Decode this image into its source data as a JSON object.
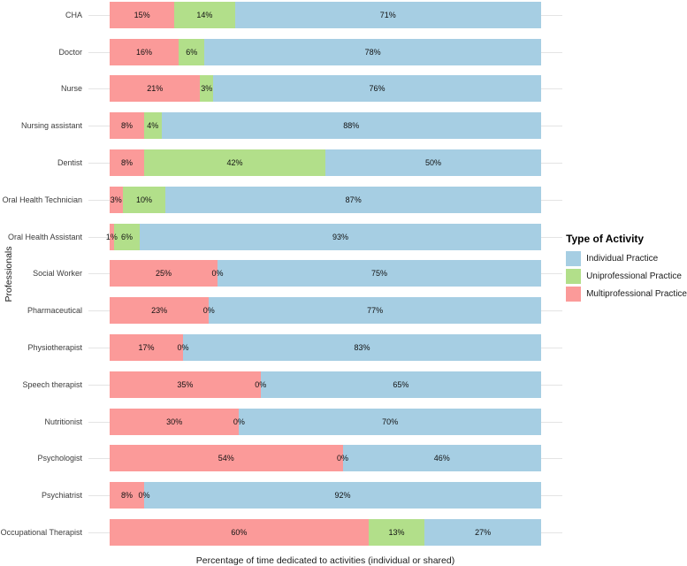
{
  "chart_data": {
    "type": "bar",
    "orientation": "horizontal",
    "stacked": true,
    "stack_unit": "percent",
    "title": "",
    "xlabel": "Percentage of time dedicated to activities (individual or shared)",
    "ylabel": "Professionals",
    "xlim": [
      0,
      100
    ],
    "grid": "light horizontal line at each category, visible beyond bar ends",
    "categories": [
      "CHA",
      "Doctor",
      "Nurse",
      "Nursing assistant",
      "Dentist",
      "Oral Health Technician",
      "Oral Health Assistant",
      "Social Worker",
      "Pharmaceutical",
      "Physiotherapist",
      "Speech therapist",
      "Nutritionist",
      "Psychologist",
      "Psychiatrist",
      "Occupational Therapist"
    ],
    "series": [
      {
        "name": "Multiprofessional Practice",
        "color": "#FB9A99",
        "values": [
          15,
          16,
          21,
          8,
          8,
          3,
          1,
          25,
          23,
          17,
          35,
          30,
          54,
          8,
          60
        ]
      },
      {
        "name": "Uniprofessional Practice",
        "color": "#B2DF8A",
        "values": [
          14,
          6,
          3,
          4,
          42,
          10,
          6,
          0,
          0,
          0,
          0,
          0,
          0,
          0,
          13
        ]
      },
      {
        "name": "Individual Practice",
        "color": "#A6CEE3",
        "values": [
          71,
          78,
          76,
          88,
          50,
          87,
          93,
          75,
          77,
          83,
          65,
          70,
          46,
          92,
          27
        ]
      }
    ],
    "legend": {
      "title": "Type of Activity",
      "position": "right",
      "entries": [
        {
          "label": "Individual Practice",
          "color": "#A6CEE3"
        },
        {
          "label": "Uniprofessional Practice",
          "color": "#B2DF8A"
        },
        {
          "label": "Multiprofessional Practice",
          "color": "#FB9A99"
        }
      ]
    },
    "value_label_format": "{value}%"
  },
  "colors": {
    "background": "#FFFFFF",
    "gridline": "#E4E4E4",
    "axis_text": "#3C3C3C",
    "axis_title": "#1A1A1A",
    "segment_label": "#111111"
  }
}
